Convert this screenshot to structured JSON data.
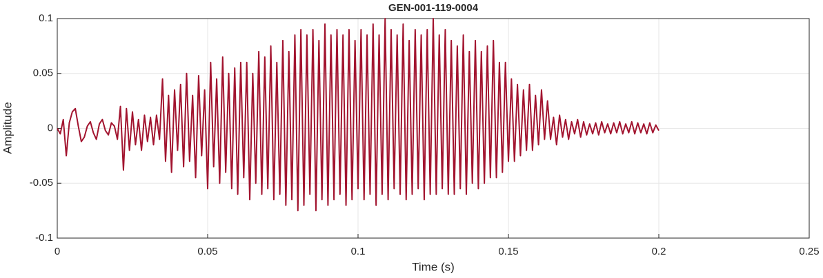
{
  "chart_data": {
    "type": "line",
    "title": "GEN-001-119-0004",
    "x_label": "Time (s)",
    "y_label": "Amplitude",
    "x": [
      0,
      0.001,
      0.002,
      0.003,
      0.004,
      0.005,
      0.006,
      0.007,
      0.008,
      0.009,
      0.01,
      0.011,
      0.012,
      0.013,
      0.014,
      0.015,
      0.016,
      0.017,
      0.018,
      0.019,
      0.02,
      0.021,
      0.022,
      0.023,
      0.024,
      0.025,
      0.026,
      0.027,
      0.028,
      0.029,
      0.03,
      0.031,
      0.032,
      0.033,
      0.034,
      0.035,
      0.036,
      0.037,
      0.038,
      0.039,
      0.04,
      0.041,
      0.042,
      0.043,
      0.044,
      0.045,
      0.046,
      0.047,
      0.048,
      0.049,
      0.05,
      0.051,
      0.052,
      0.053,
      0.054,
      0.055,
      0.056,
      0.057,
      0.058,
      0.059,
      0.06,
      0.061,
      0.062,
      0.063,
      0.064,
      0.065,
      0.066,
      0.067,
      0.068,
      0.069,
      0.07,
      0.071,
      0.072,
      0.073,
      0.074,
      0.075,
      0.076,
      0.077,
      0.078,
      0.079,
      0.08,
      0.081,
      0.082,
      0.083,
      0.084,
      0.085,
      0.086,
      0.087,
      0.088,
      0.089,
      0.09,
      0.091,
      0.092,
      0.093,
      0.094,
      0.095,
      0.096,
      0.097,
      0.098,
      0.099,
      0.1,
      0.101,
      0.102,
      0.103,
      0.104,
      0.105,
      0.106,
      0.107,
      0.108,
      0.109,
      0.11,
      0.111,
      0.112,
      0.113,
      0.114,
      0.115,
      0.116,
      0.117,
      0.118,
      0.119,
      0.12,
      0.121,
      0.122,
      0.123,
      0.124,
      0.125,
      0.126,
      0.127,
      0.128,
      0.129,
      0.13,
      0.131,
      0.132,
      0.133,
      0.134,
      0.135,
      0.136,
      0.137,
      0.138,
      0.139,
      0.14,
      0.141,
      0.142,
      0.143,
      0.144,
      0.145,
      0.146,
      0.147,
      0.148,
      0.149,
      0.15,
      0.151,
      0.152,
      0.153,
      0.154,
      0.155,
      0.156,
      0.157,
      0.158,
      0.159,
      0.16,
      0.161,
      0.162,
      0.163,
      0.164,
      0.165,
      0.166,
      0.167,
      0.168,
      0.169,
      0.17,
      0.171,
      0.172,
      0.173,
      0.174,
      0.175,
      0.176,
      0.177,
      0.178,
      0.179,
      0.18,
      0.181,
      0.182,
      0.183,
      0.184,
      0.185,
      0.186,
      0.187,
      0.188,
      0.189,
      0.19,
      0.191,
      0.192,
      0.193,
      0.194,
      0.195,
      0.196,
      0.197,
      0.198,
      0.199,
      0.2
    ],
    "series": [
      {
        "color": "#a2142f",
        "values": [
          0,
          -0.005,
          0.008,
          -0.025,
          0.005,
          0.015,
          0.018,
          0.002,
          -0.012,
          -0.008,
          0.002,
          0.006,
          -0.004,
          -0.01,
          0.004,
          0.008,
          -0.002,
          -0.006,
          0.005,
          0.002,
          -0.01,
          0.02,
          -0.038,
          0.018,
          -0.02,
          0.015,
          -0.015,
          0.008,
          -0.02,
          0.012,
          -0.012,
          0.01,
          -0.015,
          0.012,
          -0.01,
          0.045,
          -0.03,
          0.03,
          -0.04,
          0.035,
          -0.02,
          0.04,
          -0.035,
          0.05,
          -0.03,
          0.03,
          -0.045,
          0.048,
          -0.025,
          0.035,
          -0.055,
          0.06,
          -0.035,
          0.045,
          -0.05,
          0.065,
          -0.04,
          0.05,
          -0.055,
          0.055,
          -0.06,
          0.06,
          -0.045,
          0.06,
          -0.065,
          0.05,
          -0.05,
          0.07,
          -0.06,
          0.065,
          -0.055,
          0.075,
          -0.065,
          0.06,
          -0.06,
          0.08,
          -0.07,
          0.07,
          -0.065,
          0.085,
          -0.075,
          0.09,
          -0.07,
          0.085,
          -0.06,
          0.09,
          -0.075,
          0.08,
          -0.065,
          0.095,
          -0.07,
          0.085,
          -0.065,
          0.09,
          -0.06,
          0.085,
          -0.07,
          0.09,
          -0.065,
          0.08,
          -0.055,
          0.09,
          -0.065,
          0.085,
          -0.06,
          0.095,
          -0.07,
          0.085,
          -0.06,
          0.1,
          -0.065,
          0.09,
          -0.055,
          0.085,
          -0.06,
          0.095,
          -0.065,
          0.08,
          -0.06,
          0.09,
          -0.055,
          0.085,
          -0.065,
          0.09,
          -0.06,
          0.1,
          -0.06,
          0.085,
          -0.055,
          0.09,
          -0.06,
          0.08,
          -0.06,
          0.075,
          -0.055,
          0.085,
          -0.06,
          0.07,
          -0.05,
          0.08,
          -0.055,
          0.07,
          -0.05,
          0.075,
          -0.045,
          0.08,
          -0.045,
          0.06,
          -0.04,
          0.06,
          -0.03,
          0.045,
          -0.03,
          0.04,
          -0.025,
          0.035,
          -0.02,
          0.04,
          -0.02,
          0.03,
          -0.015,
          0.035,
          -0.01,
          0.025,
          -0.01,
          0.01,
          -0.015,
          0.012,
          -0.008,
          0.008,
          -0.01,
          0.006,
          -0.005,
          0.008,
          -0.008,
          0.006,
          -0.006,
          0.004,
          -0.005,
          0.005,
          -0.006,
          0.006,
          -0.004,
          0.004,
          -0.005,
          0.005,
          -0.004,
          0.006,
          -0.005,
          0.004,
          -0.004,
          0.006,
          -0.005,
          0.005,
          -0.004,
          0.004,
          -0.005,
          0.005,
          -0.004,
          0.003,
          -0.002
        ]
      }
    ],
    "xlim": [
      0,
      0.25
    ],
    "xticks": [
      0,
      0.05,
      0.1,
      0.15,
      0.2,
      0.25
    ],
    "ylim": [
      -0.1,
      0.1
    ],
    "yticks": [
      -0.1,
      -0.05,
      0,
      0.05,
      0.1
    ],
    "grid": true
  }
}
